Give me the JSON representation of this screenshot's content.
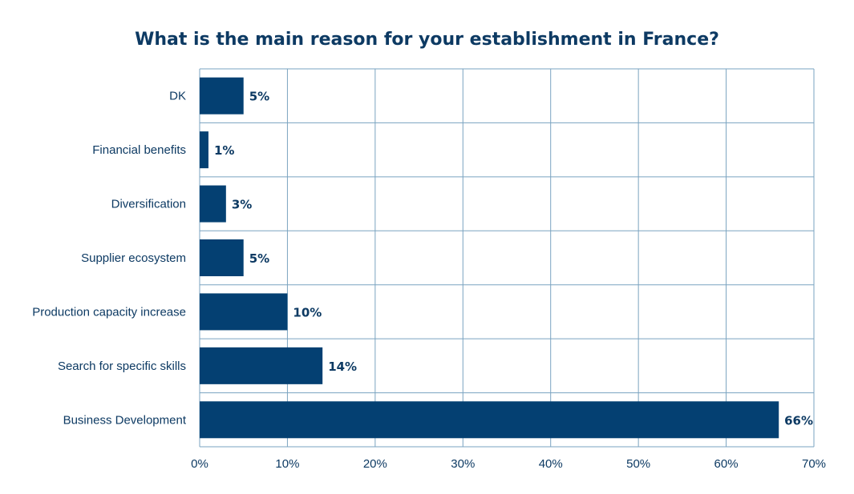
{
  "chart_data": {
    "type": "bar",
    "orientation": "horizontal",
    "title": "What is the main reason for your establishment in France?",
    "categories": [
      "DK",
      "Financial benefits",
      "Diversification",
      "Supplier ecosystem",
      "Production capacity increase",
      "Search for specific skills",
      "Business Development"
    ],
    "values": [
      5,
      1,
      3,
      5,
      10,
      14,
      66
    ],
    "data_labels": [
      "5%",
      "1%",
      "3%",
      "5%",
      "10%",
      "14%",
      "66%"
    ],
    "xlim": [
      0,
      70
    ],
    "x_ticks": [
      0,
      10,
      20,
      30,
      40,
      50,
      60,
      70
    ],
    "x_tick_labels": [
      "0%",
      "10%",
      "20%",
      "30%",
      "40%",
      "50%",
      "60%",
      "70%"
    ],
    "xlabel": "",
    "ylabel": "",
    "grid": true,
    "legend": "none",
    "colors": {
      "bar": "#044072",
      "grid": "#7aa3c0",
      "text": "#0d3a63"
    }
  }
}
